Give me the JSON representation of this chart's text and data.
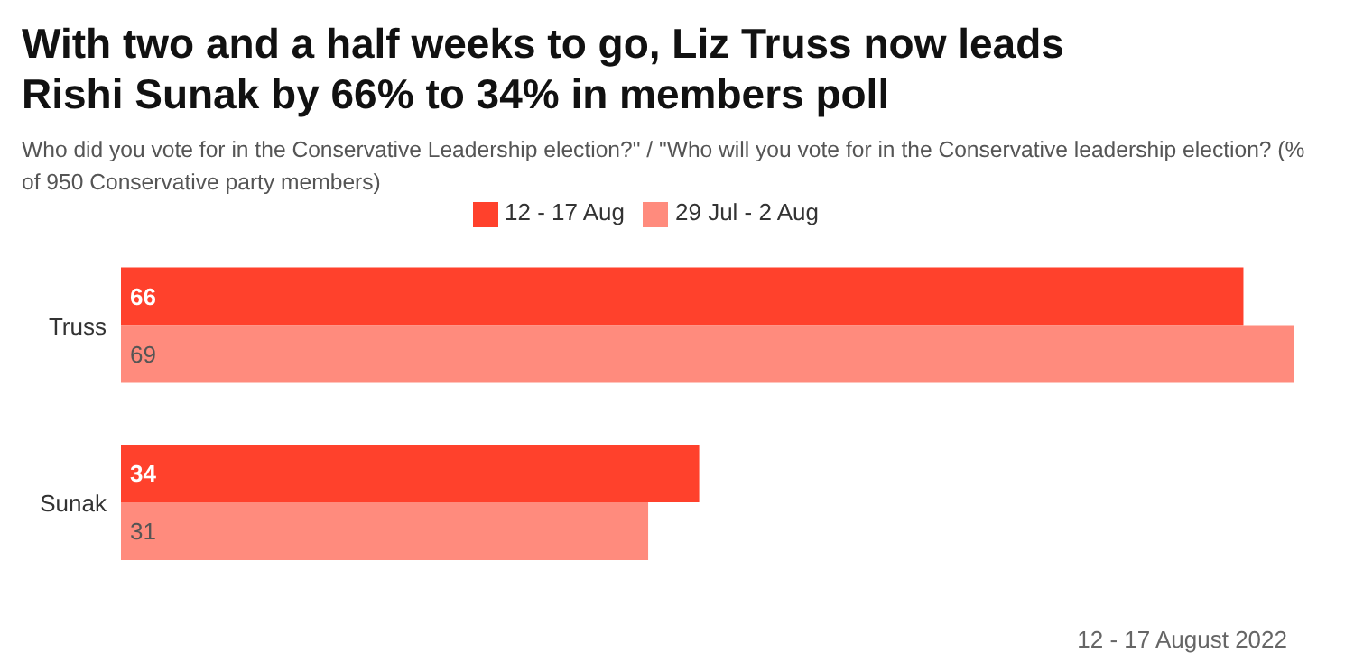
{
  "chart_data": {
    "type": "bar",
    "orientation": "horizontal",
    "title": "With two and a half weeks to go, Liz Truss now leads Rishi Sunak by 66% to 34% in members poll",
    "subtitle": "Who did you vote for in the Conservative Leadership election?\" / \"Who will you vote for in the Conservative leadership election? (% of 950 Conservative party members)",
    "categories": [
      "Truss",
      "Sunak"
    ],
    "series": [
      {
        "name": "12 - 17 Aug",
        "color": "#ff412c",
        "values": [
          66,
          34
        ]
      },
      {
        "name": "29 Jul - 2 Aug",
        "color": "#ff8b7d",
        "values": [
          69,
          31
        ]
      }
    ],
    "data_labels": true,
    "legend": "top",
    "annotations": [
      "12 - 17 August 2022"
    ]
  }
}
